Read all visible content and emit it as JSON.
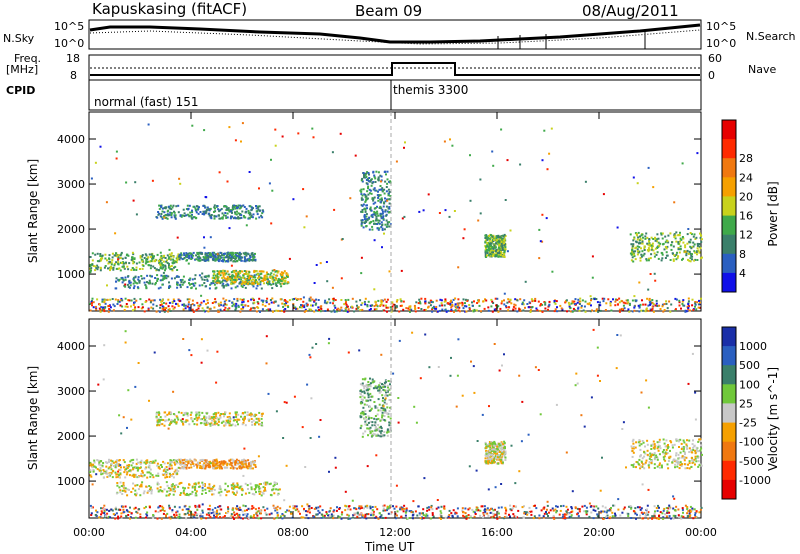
{
  "header": {
    "station": "Kapuskasing (fitACF)",
    "beam": "Beam 09",
    "date": "08/Aug/2011"
  },
  "summary_panels": {
    "noise": {
      "left_label": "N.Sky",
      "right_label": "N.Search",
      "ticks_left": [
        "10^5",
        "10^0"
      ],
      "ticks_right": [
        "10^5",
        "10^0"
      ]
    },
    "freq": {
      "left_label_1": "Freq.",
      "left_label_2": "[MHz]",
      "right_label": "Nave",
      "ticks_left": [
        "18",
        "8"
      ],
      "ticks_right": [
        "60",
        "0"
      ]
    },
    "cpid": {
      "label": "CPID",
      "modes": [
        "normal (fast) 151",
        "themis 3300"
      ]
    }
  },
  "chart_data": [
    {
      "type": "heatmap",
      "name_key": "power",
      "ylabel": "Slant Range [km]",
      "y_ticks": [
        "1000",
        "2000",
        "3000",
        "4000"
      ],
      "ylim": [
        180,
        4600
      ],
      "xlabel": "Time UT",
      "x_ticks": [
        "00:00",
        "04:00",
        "08:00",
        "12:00",
        "16:00",
        "20:00",
        "00:00"
      ],
      "colorbar": {
        "label": "Power [dB]",
        "ticks": [
          "4",
          "8",
          "12",
          "16",
          "20",
          "24",
          "28"
        ],
        "colors": [
          "#1010e8",
          "#2a5fc0",
          "#3a7f6a",
          "#3fa94a",
          "#c8d21c",
          "#f5a000",
          "#f07810",
          "#ff2a00",
          "#e60000"
        ]
      },
      "regions": [
        {
          "t0": 0.0,
          "t1": 3.5,
          "r0": 1100,
          "r1": 1500,
          "lvl": 3
        },
        {
          "t0": 1.0,
          "t1": 7.5,
          "r0": 700,
          "r1": 1000,
          "lvl": 2
        },
        {
          "t0": 2.6,
          "t1": 6.8,
          "r0": 2250,
          "r1": 2550,
          "lvl": 2
        },
        {
          "t0": 3.5,
          "t1": 6.5,
          "r0": 1300,
          "r1": 1500,
          "lvl": 2
        },
        {
          "t0": 10.6,
          "t1": 11.8,
          "r0": 2000,
          "r1": 3300,
          "lvl": 2
        },
        {
          "t0": 15.5,
          "t1": 16.3,
          "r0": 1400,
          "r1": 1900,
          "lvl": 3
        },
        {
          "t0": 21.2,
          "t1": 24.0,
          "r0": 1300,
          "r1": 1950,
          "lvl": 3
        },
        {
          "t0": 4.8,
          "t1": 7.8,
          "r0": 800,
          "r1": 1100,
          "lvl": 4
        },
        {
          "t0": 0.0,
          "t1": 24.0,
          "r0": 180,
          "r1": 480,
          "lvl": 2
        }
      ]
    },
    {
      "type": "heatmap",
      "name_key": "velocity",
      "ylabel": "Slant Range [km]",
      "y_ticks": [
        "1000",
        "2000",
        "3000",
        "4000"
      ],
      "ylim": [
        180,
        4600
      ],
      "xlabel": "Time UT",
      "x_ticks": [
        "00:00",
        "04:00",
        "08:00",
        "12:00",
        "16:00",
        "20:00",
        "00:00"
      ],
      "colorbar": {
        "label": "Velocity [m s^-1]",
        "ticks": [
          "1000",
          "500",
          "100",
          "25",
          "-25",
          "-100",
          "-500",
          "-1000"
        ],
        "colors": [
          "#1a2fa8",
          "#2a5fc0",
          "#3a7f6a",
          "#70c83a",
          "#c8c8c8",
          "#f5a000",
          "#f07810",
          "#ff2a00",
          "#e60000"
        ]
      },
      "regions": [
        {
          "t0": 0.0,
          "t1": 3.5,
          "r0": 1100,
          "r1": 1500,
          "lvl": 4
        },
        {
          "t0": 1.0,
          "t1": 7.5,
          "r0": 700,
          "r1": 1000,
          "lvl": 4
        },
        {
          "t0": 2.6,
          "t1": 6.8,
          "r0": 2250,
          "r1": 2550,
          "lvl": 4
        },
        {
          "t0": 3.5,
          "t1": 6.5,
          "r0": 1300,
          "r1": 1500,
          "lvl": 5
        },
        {
          "t0": 10.6,
          "t1": 11.8,
          "r0": 2000,
          "r1": 3300,
          "lvl": 3
        },
        {
          "t0": 15.5,
          "t1": 16.3,
          "r0": 1400,
          "r1": 1900,
          "lvl": 4
        },
        {
          "t0": 21.2,
          "t1": 24.0,
          "r0": 1300,
          "r1": 1950,
          "lvl": 4
        },
        {
          "t0": 0.0,
          "t1": 24.0,
          "r0": 180,
          "r1": 480,
          "lvl": 4
        }
      ]
    }
  ]
}
